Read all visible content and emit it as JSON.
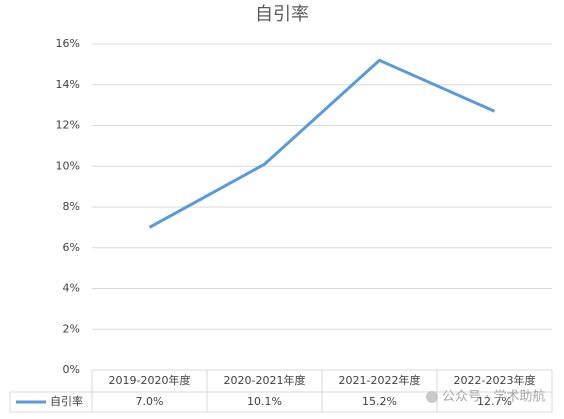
{
  "chart_data": {
    "type": "line",
    "title": "自引率",
    "categories": [
      "2019-2020年度",
      "2020-2021年度",
      "2021-2022年度",
      "2022-2023年度"
    ],
    "series": [
      {
        "name": "自引率",
        "color": "#5b9bd5",
        "values": [
          7.0,
          10.1,
          15.2,
          12.7
        ],
        "value_labels": [
          "7.0%",
          "10.1%",
          "15.2%",
          "12.7%"
        ]
      }
    ],
    "ylim": [
      0,
      16
    ],
    "yticks": [
      {
        "value": 0,
        "label": "0%"
      },
      {
        "value": 2,
        "label": "2%"
      },
      {
        "value": 4,
        "label": "4%"
      },
      {
        "value": 6,
        "label": "6%"
      },
      {
        "value": 8,
        "label": "8%"
      },
      {
        "value": 10,
        "label": "10%"
      },
      {
        "value": 12,
        "label": "12%"
      },
      {
        "value": 14,
        "label": "14%"
      },
      {
        "value": 16,
        "label": "16%"
      }
    ],
    "grid": true,
    "watermark": "公众号 · 学术助航"
  }
}
